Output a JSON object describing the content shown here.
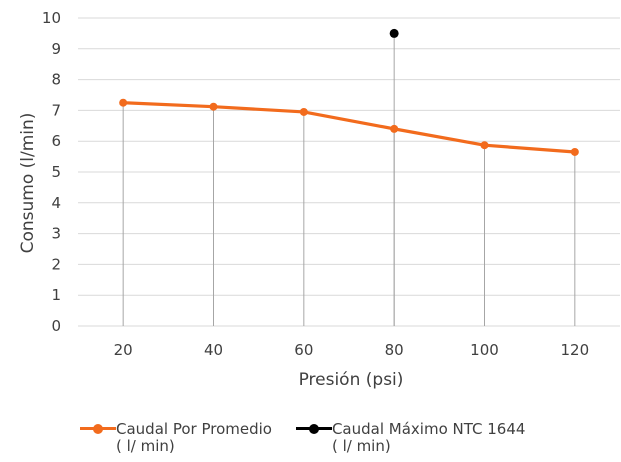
{
  "chart_data": {
    "type": "line",
    "x": [
      20,
      40,
      60,
      80,
      100,
      120
    ],
    "categories": [
      "20",
      "40",
      "60",
      "80",
      "100",
      "120"
    ],
    "xlabel": "Presión (psi)",
    "ylabel": "Consumo (l/min)",
    "ylim": [
      0,
      10
    ],
    "yticks": [
      "0",
      "1",
      "2",
      "3",
      "4",
      "5",
      "6",
      "7",
      "8",
      "9",
      "10"
    ],
    "grid": "horizontal",
    "legend_position": "bottom",
    "series": [
      {
        "name": "Caudal Por Promedio\n( l/ min)",
        "color": "#f26b1d",
        "values": [
          7.25,
          7.12,
          6.95,
          6.4,
          5.87,
          5.65
        ],
        "drop_lines": true
      },
      {
        "name": "Caudal Máximo NTC 1644\n( l/ min)",
        "color": "#000000",
        "values": [
          null,
          null,
          null,
          9.5,
          null,
          null
        ],
        "drop_lines": true
      }
    ]
  }
}
